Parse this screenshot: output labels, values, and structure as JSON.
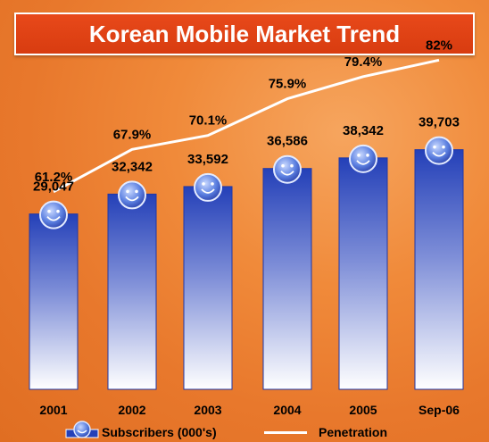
{
  "title": "Korean Mobile Market Trend",
  "chart_data": {
    "type": "bar",
    "categories": [
      "2001",
      "2002",
      "2003",
      "2004",
      "2005",
      "Sep-06"
    ],
    "series": [
      {
        "name": "Subscribers (000's)",
        "values": [
          29047,
          32342,
          33592,
          36586,
          38342,
          39703
        ],
        "labels": [
          "29,047",
          "32,342",
          "33,592",
          "36,586",
          "38,342",
          "39,703"
        ]
      },
      {
        "name": "Penetration",
        "values": [
          61.2,
          67.9,
          70.1,
          75.9,
          79.4,
          82
        ],
        "labels": [
          "61.2%",
          "67.9%",
          "70.1%",
          "75.9%",
          "79.4%",
          "82%"
        ]
      }
    ],
    "legend": {
      "position": "bottom"
    }
  },
  "colors": {
    "bar_top": "#2440b8",
    "bar_bottom": "#ffffff",
    "line": "#ffffff",
    "title_bg": "#e0451a",
    "background": "#f08a3a"
  }
}
